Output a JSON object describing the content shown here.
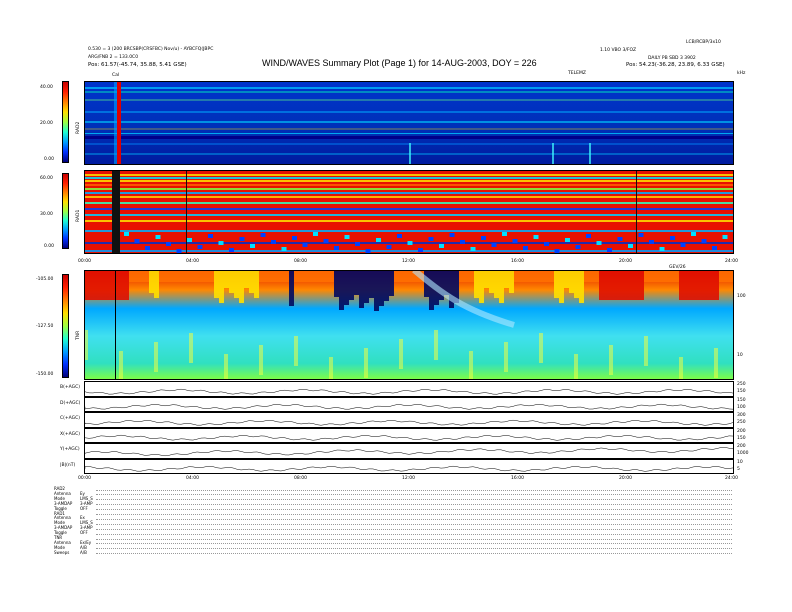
{
  "header": {
    "title": "WIND/WAVES Summary Plot (Page 1) for 14-AUG-2003, DOY = 226",
    "left_line1": "0.530 = 3 (200 BRCSBP(CRSFBC) Nov/u) - AYBCFQ(JBPC",
    "left_line2": "ARG/FNB 2 = 133.0C0",
    "left_line3": "Pos:  61.57(-45.74, 35.88, 5.41 GSE)",
    "right_line1": "LCB/RCBP/3x10",
    "right_line2": "1.10 VBO 3/FOZ",
    "right_line3": "DAILY PB SBD 3 3902",
    "right_line4": "Pos:  54.23(-36.28, 23.89, 6.33 GSE)",
    "telemetry_label": "TELEMZ",
    "khz_label": "kHz",
    "cal_label": "Cal"
  },
  "rad2": {
    "label": "RAD2",
    "ticks": [
      "40.00",
      "20.00",
      "0.00"
    ]
  },
  "rad1": {
    "label": "RAD1",
    "ticks": [
      "60.00",
      "30.00",
      "0.00"
    ]
  },
  "tnr": {
    "label": "TNR",
    "ticks": [
      "-105.00",
      "-127.50",
      "-150.00"
    ],
    "right_ticks": [
      "100",
      "10"
    ],
    "top_right_label": "GEV/26"
  },
  "mid_axis": [
    "00:00",
    "04:00",
    "08:00",
    "12:00",
    "16:00",
    "20:00",
    "24:00"
  ],
  "bottom_axis": [
    "00:00",
    "04:00",
    "08:00",
    "12:00",
    "16:00",
    "20:00",
    "24:00"
  ],
  "line_panels": [
    {
      "label": "B(+AGC)",
      "ticks": [
        "250",
        "150"
      ]
    },
    {
      "label": "D(+AGC)",
      "ticks": [
        "150",
        "100"
      ]
    },
    {
      "label": "C(+AGC)",
      "ticks": [
        "300",
        "250"
      ]
    },
    {
      "label": "X(+AGC)",
      "ticks": [
        "200",
        "150"
      ]
    },
    {
      "label": "Y(+AGC)",
      "ticks": [
        "200",
        "1000"
      ]
    },
    {
      "label": "|B|(nT)",
      "ticks": [
        "10",
        "5"
      ]
    }
  ],
  "status": {
    "rows": [
      {
        "k": "RAD2",
        "v": ""
      },
      {
        "k": "Antenna",
        "v": "Ey"
      },
      {
        "k": "Mode",
        "v": "LMS_S"
      },
      {
        "k": "3-AMDAP",
        "v": "3-AMP"
      },
      {
        "k": "Toggle",
        "v": "OFF"
      },
      {
        "k": "RAD1",
        "v": ""
      },
      {
        "k": "Antenna",
        "v": "Ex"
      },
      {
        "k": "Mode",
        "v": "LMS_S"
      },
      {
        "k": "3-AMDAP",
        "v": "3-AMP"
      },
      {
        "k": "Toggle",
        "v": "OFF"
      },
      {
        "k": "TNR",
        "v": ""
      },
      {
        "k": "Antenna",
        "v": "Ex/Ey"
      },
      {
        "k": "Mode",
        "v": "A/B"
      },
      {
        "k": "Sweeps",
        "v": "A/B"
      }
    ]
  },
  "chart_data": {
    "type": "heatmap",
    "title": "WIND/WAVES Summary Plot (Page 1) for 14-AUG-2003, DOY = 226",
    "x": [
      "00:00",
      "04:00",
      "08:00",
      "12:00",
      "16:00",
      "20:00",
      "24:00"
    ],
    "panels": [
      {
        "name": "RAD2",
        "ylim": [
          0,
          40
        ]
      },
      {
        "name": "RAD1",
        "ylim": [
          0,
          60
        ]
      },
      {
        "name": "TNR",
        "ylim": [
          -150,
          -105
        ]
      }
    ],
    "colors": {
      "high": "#e00000",
      "mid": "#ffd000",
      "low": "#001a9e"
    }
  }
}
